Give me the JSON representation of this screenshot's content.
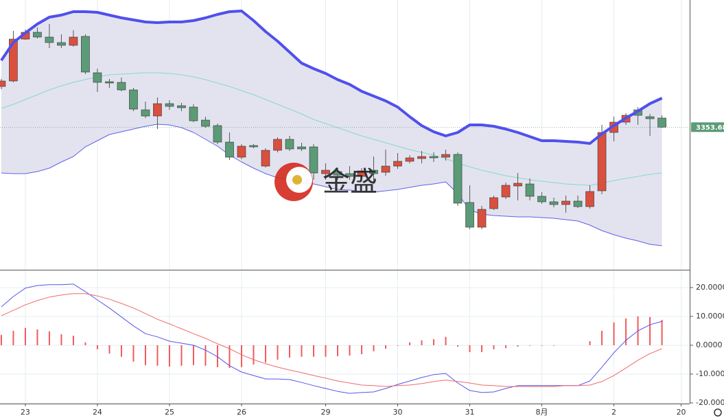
{
  "chart_data": [
    {
      "type": "candlestick",
      "watermark": "金盛",
      "xlim": [
        -0.11,
        57.31
      ],
      "ylim": [
        3301.75,
        3400
      ],
      "up_color": "#d9503f",
      "down_color": "#5b9b77",
      "band_fill": "#e3e3f0",
      "open": [
        3368.5,
        3370.5,
        3385.75,
        3388.25,
        3386.5,
        3384.5,
        3383.5,
        3386.75,
        3373.5,
        3370.25,
        3370,
        3367.25,
        3360,
        3357.75,
        3362.25,
        3361.5,
        3361,
        3356.25,
        3354.25,
        3348.25,
        3342.75,
        3347,
        3339.5,
        3345.25,
        3349.25,
        3346.5,
        3346.5,
        3336.75,
        3337.5,
        3336.75,
        3335.75,
        3338,
        3337.25,
        3339.5,
        3341.25,
        3342.25,
        3343,
        3342.75,
        3343.75,
        3326.25,
        3317.25,
        3324,
        3328.25,
        3332.25,
        3333,
        3328.5,
        3326.5,
        3325.5,
        3326.75,
        3324.75,
        3330.5,
        3351.75,
        3355.5,
        3360,
        3357.5,
        3357
      ],
      "high": [
        3371.25,
        3388.75,
        3389.25,
        3390,
        3391.25,
        3387.5,
        3389,
        3387.5,
        3375,
        3371.25,
        3371.75,
        3368,
        3363,
        3364.5,
        3363.5,
        3362.5,
        3362,
        3357.5,
        3355,
        3351.75,
        3347.5,
        3347.5,
        3346,
        3350,
        3350.5,
        3348,
        3347.5,
        3340.5,
        3339,
        3339.5,
        3338.75,
        3343,
        3345.5,
        3344.25,
        3343.5,
        3345,
        3344.5,
        3345.5,
        3344.5,
        3332.5,
        3325,
        3328.75,
        3333.5,
        3337,
        3335,
        3330,
        3328,
        3328.75,
        3328.75,
        3332.5,
        3354.5,
        3357.5,
        3358.75,
        3361,
        3358.5,
        3358
      ],
      "low": [
        3367.5,
        3370,
        3385.5,
        3386,
        3382.5,
        3382.5,
        3383,
        3373,
        3366.5,
        3368,
        3366.75,
        3359.5,
        3357,
        3353,
        3360,
        3359.5,
        3355.5,
        3353.5,
        3347.5,
        3341.75,
        3342,
        3346,
        3339,
        3344.5,
        3345,
        3345,
        3334.5,
        3334.5,
        3334.5,
        3334.5,
        3334.5,
        3333,
        3336,
        3338.5,
        3340.5,
        3340.5,
        3341,
        3341.5,
        3325,
        3316.5,
        3316.5,
        3323.5,
        3327.5,
        3327,
        3327,
        3325.75,
        3324.5,
        3322.5,
        3324.25,
        3324,
        3329.25,
        3348.5,
        3354.5,
        3354.5,
        3350.5,
        3353.5
      ],
      "close": [
        3370.5,
        3385.75,
        3388.25,
        3386.5,
        3384.5,
        3383.5,
        3386.5,
        3373.75,
        3370,
        3369.75,
        3367.25,
        3360.25,
        3357.75,
        3362.25,
        3361.25,
        3360.75,
        3356,
        3354,
        3348.25,
        3342.75,
        3346.75,
        3346.5,
        3345.25,
        3349.25,
        3345.75,
        3345.75,
        3337,
        3338,
        3336.25,
        3335.75,
        3337.75,
        3336.75,
        3339.5,
        3341.25,
        3342.5,
        3343,
        3342.5,
        3343.75,
        3326,
        3317.25,
        3323.75,
        3328,
        3332.5,
        3333.25,
        3328.5,
        3326.5,
        3325.5,
        3326.75,
        3324.75,
        3330.25,
        3351.75,
        3355.5,
        3358,
        3358,
        3356.75,
        3353.68
      ],
      "series": [
        {
          "color": "#5050ec",
          "line_width": 4,
          "values": [
            3378,
            3384.5,
            3388,
            3391.25,
            3393.75,
            3394.5,
            3395.75,
            3395.75,
            3395.5,
            3394.5,
            3393.5,
            3392.75,
            3392,
            3391.75,
            3392,
            3392,
            3392.5,
            3393.5,
            3394.75,
            3395.75,
            3396,
            3392.5,
            3388.5,
            3385,
            3381,
            3377,
            3375,
            3373.25,
            3371,
            3369.25,
            3366.75,
            3365,
            3363.25,
            3361,
            3357.5,
            3354.25,
            3352,
            3350.5,
            3351.75,
            3354.5,
            3354.5,
            3354,
            3353,
            3351.75,
            3350.25,
            3348.75,
            3348.75,
            3348.5,
            3348.25,
            3347.75,
            3351.25,
            3354.25,
            3357,
            3359.5,
            3362.25,
            3364.25
          ]
        },
        {
          "color": "#86d8ca",
          "line_width": 1,
          "values": [
            3360.5,
            3362,
            3363.75,
            3365.5,
            3367.25,
            3368.75,
            3370,
            3371,
            3372,
            3372.75,
            3373,
            3373.25,
            3373.5,
            3373.5,
            3373.25,
            3372.75,
            3372,
            3371,
            3369.75,
            3368.5,
            3367,
            3365.5,
            3363.75,
            3362,
            3360.25,
            3358.5,
            3356.5,
            3355,
            3353.5,
            3352,
            3350.5,
            3349.25,
            3348,
            3346.75,
            3345.5,
            3344.5,
            3343.5,
            3342.25,
            3340.5,
            3339.25,
            3338,
            3337,
            3336,
            3335.25,
            3334.5,
            3334,
            3333.5,
            3333,
            3332.75,
            3332.5,
            3333.25,
            3334.25,
            3335,
            3335.75,
            3336.5,
            3337
          ]
        },
        {
          "color": "#6060e8",
          "line_width": 1,
          "values": [
            3337,
            3336.75,
            3336.75,
            3337.5,
            3338.75,
            3341,
            3343,
            3346.5,
            3348.75,
            3351,
            3352,
            3353,
            3354,
            3354.75,
            3354.5,
            3353.5,
            3351.75,
            3349.25,
            3346.75,
            3343.5,
            3341,
            3338.75,
            3336.75,
            3335.25,
            3334.5,
            3333.5,
            3333,
            3332,
            3331,
            3330.75,
            3330.25,
            3330,
            3330.5,
            3331,
            3331.75,
            3332.5,
            3333,
            3333.75,
            3329.5,
            3323.5,
            3322,
            3321.5,
            3321.25,
            3321,
            3321,
            3320.75,
            3320.5,
            3320,
            3319.5,
            3318,
            3316,
            3314.5,
            3313.25,
            3312.25,
            3311,
            3310.5
          ]
        }
      ],
      "last_price": {
        "value": 3353.68,
        "label": "3353.68",
        "color": "#5b9b77"
      }
    },
    {
      "type": "macd",
      "xlim": [
        -0.11,
        57.31
      ],
      "ylim": [
        -20.24,
        25.71
      ],
      "grid": true,
      "yticks": [
        {
          "value": 20,
          "label": "20.0000"
        },
        {
          "value": 10,
          "label": "10.0000"
        },
        {
          "value": 0,
          "label": "0.0000"
        },
        {
          "value": -10,
          "label": "-10.0000"
        },
        {
          "value": -20,
          "label": "-20.0000"
        }
      ],
      "xticks": [
        {
          "value": 2,
          "label": "23"
        },
        {
          "value": 8,
          "label": "24"
        },
        {
          "value": 14,
          "label": "25"
        },
        {
          "value": 20,
          "label": "26"
        },
        {
          "value": 27,
          "label": "29"
        },
        {
          "value": 33,
          "label": "30"
        },
        {
          "value": 39,
          "label": "31"
        },
        {
          "value": 45,
          "label": "8月"
        },
        {
          "value": 51,
          "label": "2"
        },
        {
          "value": 56.6,
          "label": "20"
        }
      ],
      "histogram": {
        "color": "#f05a5a",
        "values": [
          3.6,
          5,
          6,
          5.5,
          4.8,
          3.8,
          3.3,
          1,
          -1.4,
          -2.9,
          -4,
          -5.7,
          -6.9,
          -7.1,
          -7.4,
          -7.1,
          -6.9,
          -7.1,
          -7.6,
          -7.9,
          -7.6,
          -6.7,
          -6,
          -5,
          -4.3,
          -4,
          -4,
          -4,
          -3.8,
          -3.6,
          -3.1,
          -2.1,
          -1.2,
          -0.2,
          1,
          1.7,
          2.1,
          2.9,
          -0.5,
          -2.4,
          -2.4,
          -1.4,
          -1,
          -0.5,
          -0.2,
          -0.2,
          -0.2,
          0,
          0,
          1.4,
          5,
          7.9,
          9.3,
          10,
          9.8,
          8.8
        ]
      },
      "series": [
        {
          "color": "#5555ee",
          "values": [
            13.3,
            16.9,
            19.8,
            20.7,
            21,
            21,
            21.2,
            18.6,
            15.7,
            12.9,
            9.8,
            6.7,
            4,
            2.9,
            1.4,
            0.7,
            0,
            -1.7,
            -4,
            -7.1,
            -9.3,
            -10.5,
            -11.7,
            -11.7,
            -11.9,
            -12.9,
            -14,
            -15,
            -16,
            -16.7,
            -16.4,
            -16.2,
            -15,
            -13.6,
            -12.4,
            -11.2,
            -10.2,
            -9.8,
            -13.1,
            -15.7,
            -16.4,
            -16.2,
            -15,
            -14,
            -14,
            -14,
            -14,
            -14,
            -14,
            -12.4,
            -7.6,
            -2.6,
            1.7,
            5,
            7.1,
            8.3
          ]
        },
        {
          "color": "#f06a6a",
          "values": [
            10.2,
            12.1,
            14,
            15.5,
            16.7,
            17.4,
            17.9,
            17.9,
            17.1,
            16,
            14.5,
            12.9,
            11,
            9,
            7.4,
            5.7,
            4,
            2.4,
            0.5,
            -1.2,
            -3.3,
            -5,
            -6.4,
            -7.6,
            -8.6,
            -9.5,
            -10.5,
            -11.4,
            -12.4,
            -13.1,
            -13.8,
            -14,
            -14.3,
            -14,
            -13.8,
            -13.3,
            -12.6,
            -12.1,
            -12.6,
            -13.1,
            -13.8,
            -14,
            -14.3,
            -14.3,
            -14.3,
            -14.3,
            -14.3,
            -14,
            -14,
            -13.8,
            -12.6,
            -10.5,
            -7.9,
            -5.2,
            -2.9,
            -1.2
          ]
        }
      ]
    }
  ]
}
